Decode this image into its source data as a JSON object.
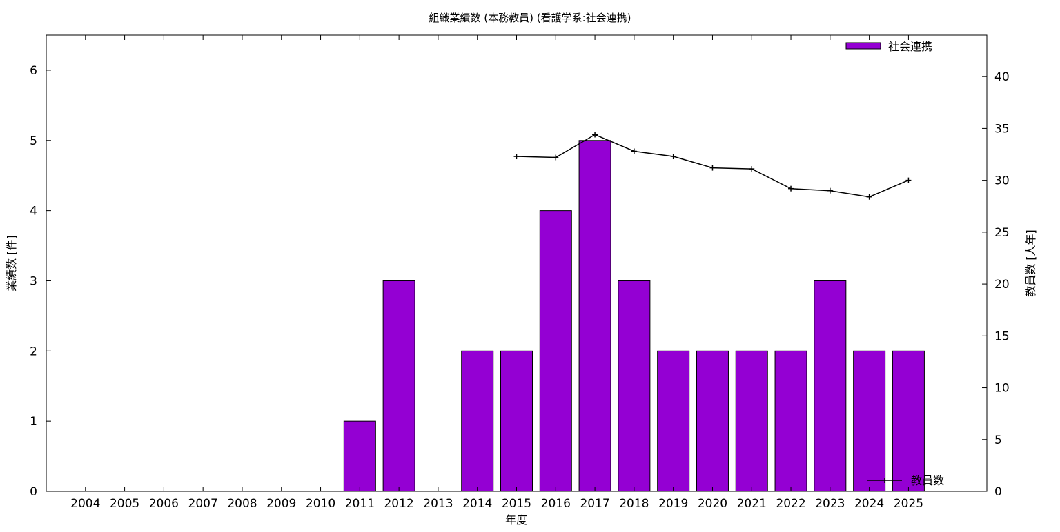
{
  "chart_data": {
    "type": "bar",
    "title": "組織業績数 (本務教員) (看護学系:社会連携)",
    "xlabel": "年度",
    "ylabel_left": "業績数 [件]",
    "ylabel_right": "教員数 [人年]",
    "categories": [
      "2004",
      "2005",
      "2006",
      "2007",
      "2008",
      "2009",
      "2010",
      "2011",
      "2012",
      "2013",
      "2014",
      "2015",
      "2016",
      "2017",
      "2018",
      "2019",
      "2020",
      "2021",
      "2022",
      "2023",
      "2024",
      "2025"
    ],
    "series": [
      {
        "name": "社会連携",
        "type": "bar",
        "axis": "left",
        "color": "#9400d3",
        "values": [
          0,
          0,
          0,
          0,
          0,
          0,
          0,
          1,
          3,
          0,
          2,
          2,
          4,
          5,
          3,
          2,
          2,
          2,
          2,
          3,
          2,
          2
        ]
      },
      {
        "name": "教員数",
        "type": "line",
        "axis": "right",
        "color": "#000000",
        "values": [
          null,
          null,
          null,
          null,
          null,
          null,
          null,
          null,
          null,
          null,
          null,
          32.3,
          32.2,
          34.4,
          32.8,
          32.3,
          31.2,
          31.1,
          29.2,
          29.0,
          28.4,
          30.0
        ]
      }
    ],
    "ylim_left": [
      0,
      6.5
    ],
    "yticks_left": [
      0,
      1,
      2,
      3,
      4,
      5,
      6
    ],
    "ylim_right": [
      0,
      44
    ],
    "yticks_right": [
      0,
      5,
      10,
      15,
      20,
      25,
      30,
      35,
      40
    ],
    "x_range": [
      2003,
      2027
    ],
    "grid": false,
    "legend": [
      {
        "label": "社会連携",
        "placement": "top-right",
        "marker": "bar-swatch"
      },
      {
        "label": "教員数",
        "placement": "bottom-right",
        "marker": "line-plus"
      }
    ]
  }
}
